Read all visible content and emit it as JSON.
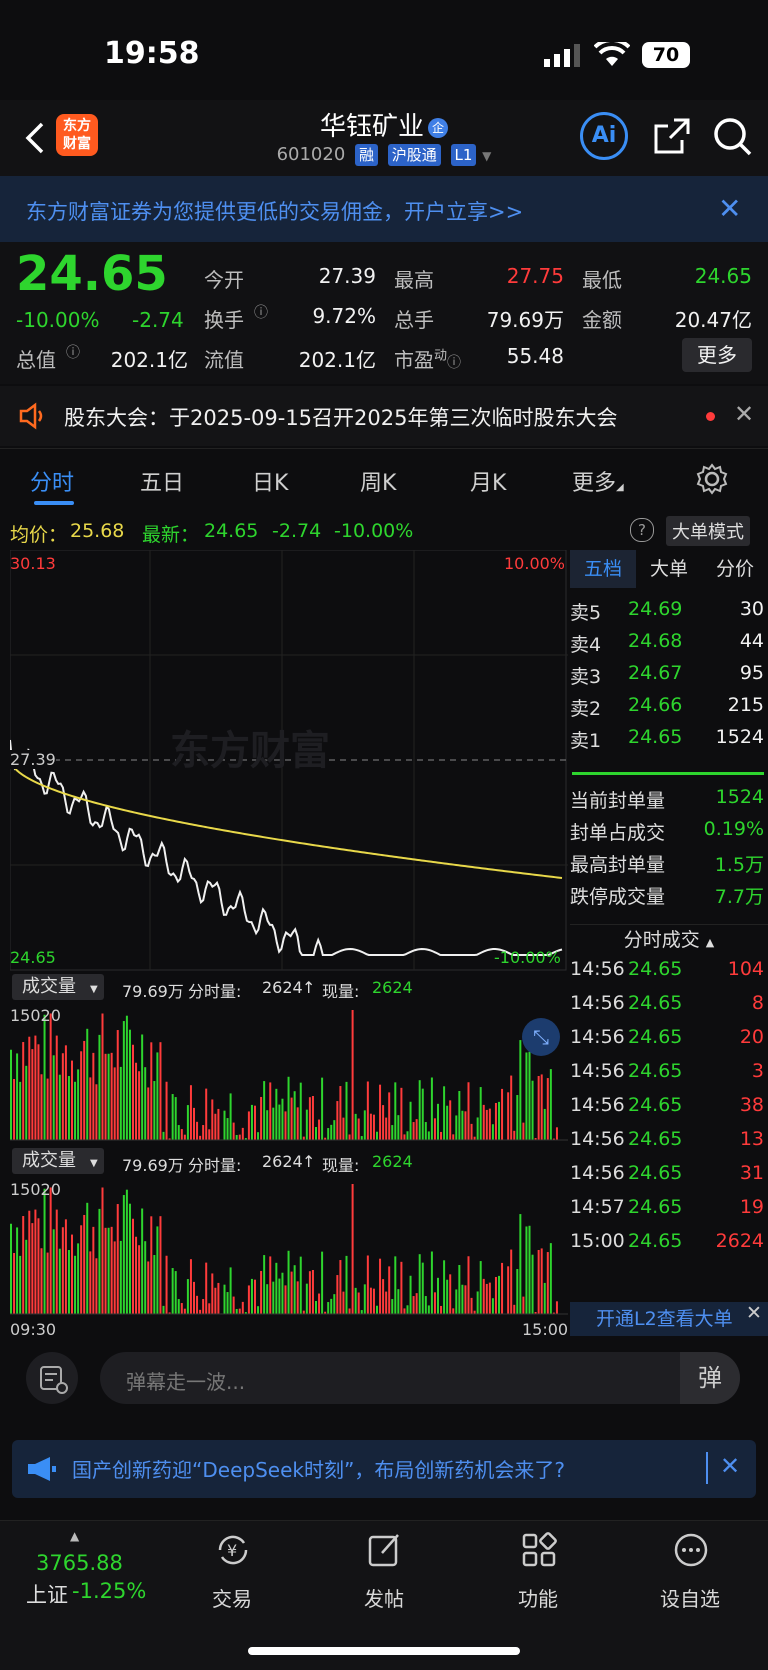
{
  "status": {
    "time": "19:58",
    "battery": "70"
  },
  "header": {
    "logo": "东方财富",
    "name": "华钰矿业",
    "badge": "企",
    "code": "601020",
    "tags": [
      "融",
      "沪股通",
      "L1"
    ]
  },
  "banner": {
    "text": "东方财富证券为您提供更低的交易佣金，开户立享>>"
  },
  "quote": {
    "price": "24.65",
    "pct": "-10.00%",
    "chg": "-2.74",
    "fields": {
      "open_l": "今开",
      "open": "27.39",
      "high_l": "最高",
      "high": "27.75",
      "low_l": "最低",
      "low": "24.65",
      "turn_l": "换手",
      "turn": "9.72%",
      "vol_l": "总手",
      "vol": "79.69万",
      "amt_l": "金额",
      "amt": "20.47亿",
      "mcap_l": "总值",
      "mcap": "202.1亿",
      "float_l": "流值",
      "float": "202.1亿",
      "pe_l": "市盈",
      "pe_sup": "动",
      "pe": "55.48"
    },
    "more": "更多"
  },
  "notice": {
    "text": "股东大会：于2025-09-15召开2025年第三次临时股东大会"
  },
  "tabs": [
    "分时",
    "五日",
    "日K",
    "周K",
    "月K",
    "更多"
  ],
  "infoline": {
    "avg_l": "均价：",
    "avg": "25.68",
    "last_l": "最新：",
    "last": "24.65",
    "chg": "-2.74",
    "pct": "-10.00%",
    "mode": "大单模式"
  },
  "chart": {
    "top_price": "30.13",
    "top_pct": "10.00%",
    "ref_price": "27.39",
    "bottom_price": "24.65",
    "bottom_pct": "-10.00%",
    "watermark": "东方财富",
    "vol_label": "成交量",
    "vol_total": "79.69万",
    "fs_l": "分时量:",
    "fs": "2624",
    "now_l": "现量:",
    "now": "2624",
    "vol_max": "15020",
    "t_start": "09:30",
    "t_end": "15:00"
  },
  "right": {
    "tabs": [
      "五档",
      "大单",
      "分价"
    ],
    "asks": [
      {
        "l": "卖5",
        "p": "24.69",
        "v": "30"
      },
      {
        "l": "卖4",
        "p": "24.68",
        "v": "44"
      },
      {
        "l": "卖3",
        "p": "24.67",
        "v": "95"
      },
      {
        "l": "卖2",
        "p": "24.66",
        "v": "215"
      },
      {
        "l": "卖1",
        "p": "24.65",
        "v": "1524"
      }
    ],
    "stats": [
      {
        "l": "当前封单量",
        "v": "1524"
      },
      {
        "l": "封单占成交",
        "v": "0.19%"
      },
      {
        "l": "最高封单量",
        "v": "1.5万"
      },
      {
        "l": "跌停成交量",
        "v": "7.7万"
      }
    ],
    "trades_title": "分时成交",
    "trades": [
      {
        "t": "14:56",
        "p": "24.65",
        "v": "104"
      },
      {
        "t": "14:56",
        "p": "24.65",
        "v": "8"
      },
      {
        "t": "14:56",
        "p": "24.65",
        "v": "20"
      },
      {
        "t": "14:56",
        "p": "24.65",
        "v": "3"
      },
      {
        "t": "14:56",
        "p": "24.65",
        "v": "38"
      },
      {
        "t": "14:56",
        "p": "24.65",
        "v": "13"
      },
      {
        "t": "14:56",
        "p": "24.65",
        "v": "31"
      },
      {
        "t": "14:57",
        "p": "24.65",
        "v": "19"
      },
      {
        "t": "15:00",
        "p": "24.65",
        "v": "2624"
      }
    ],
    "l2": "开通L2查看大单"
  },
  "input": {
    "placeholder": "弹幕走一波...",
    "dan": "弹"
  },
  "ad": {
    "text": "国产创新药迎“DeepSeek时刻”，布局创新药机会来了?"
  },
  "nav": {
    "index_val": "3765.88",
    "index_name": "上证",
    "index_pct": "-1.25%",
    "items": [
      "交易",
      "发帖",
      "功能",
      "设自选"
    ]
  },
  "colors": {
    "up": "#ff3b3b",
    "down": "#2ed52e",
    "accent": "#3a8ef5",
    "avg_line": "#e8d84a"
  }
}
